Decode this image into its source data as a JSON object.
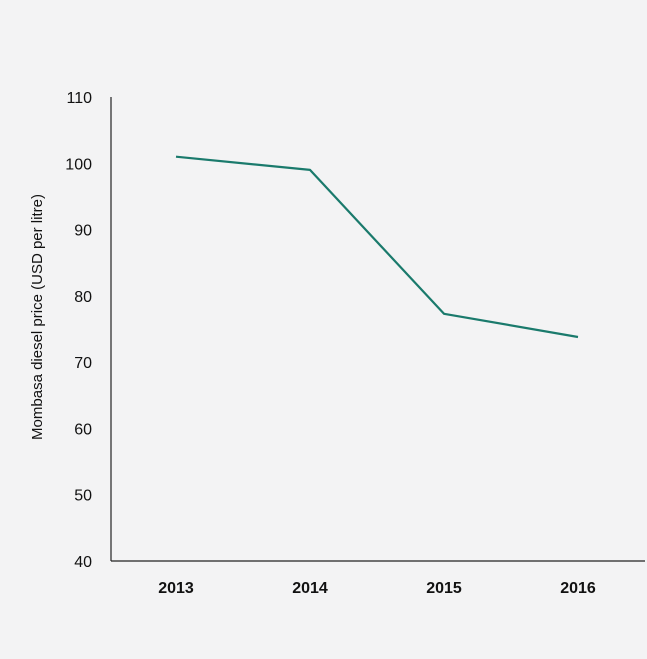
{
  "chart_data": {
    "type": "line",
    "title": "",
    "xlabel": "",
    "ylabel": "Mombasa diesel price (USD per litre)",
    "categories": [
      "2013",
      "2014",
      "2015",
      "2016"
    ],
    "series": [
      {
        "values": [
          101,
          99,
          77.3,
          73.8
        ]
      }
    ],
    "ylim": [
      40,
      110
    ],
    "yticks": [
      40,
      50,
      60,
      70,
      80,
      90,
      100,
      110
    ],
    "grid": false,
    "legend": "none",
    "colors": {
      "line": "#1a7a6c",
      "axis": "#222222",
      "background": "#f3f3f4"
    }
  }
}
